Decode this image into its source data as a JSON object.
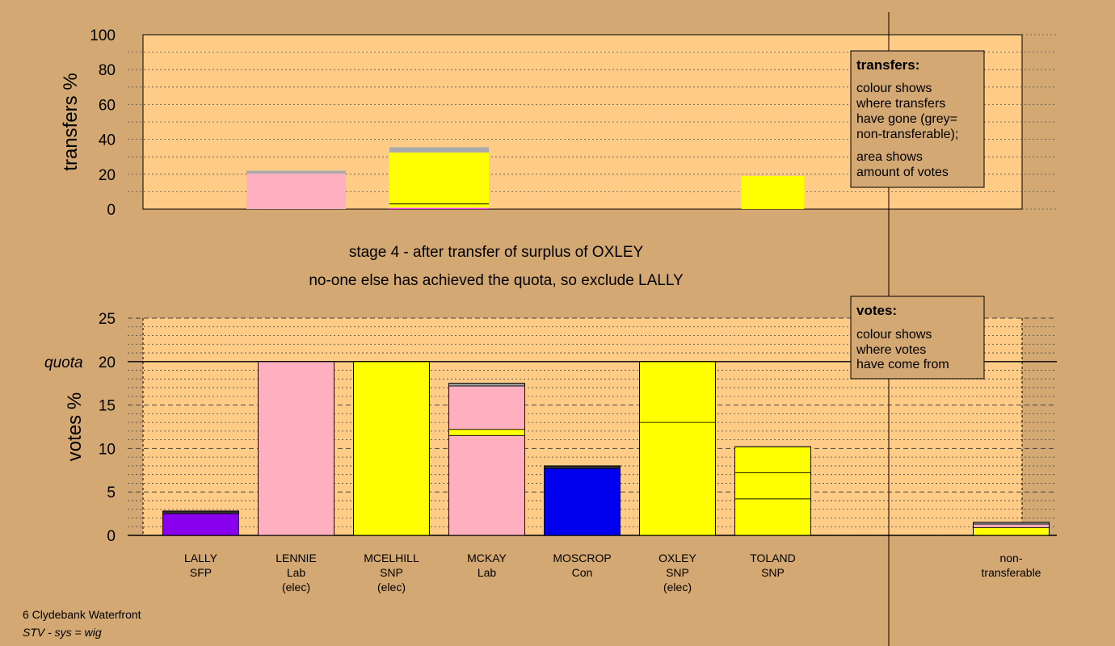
{
  "chart_data": [
    {
      "type": "bar",
      "ylabel": "transfers %",
      "ylim": [
        0,
        100
      ],
      "yticks": [
        "0",
        "20",
        "40",
        "60",
        "80",
        "100"
      ],
      "legend": {
        "title": "transfers:",
        "lines": [
          "colour shows",
          "where transfers",
          "have gone (grey=",
          "non-transferable);",
          "area shows",
          "amount of votes"
        ]
      },
      "bars": [
        {
          "candidate": "LALLY",
          "column": 1,
          "segments": [
            {
              "color": "#ffb0c0",
              "value": 20.4
            },
            {
              "color": "#aaaaaa",
              "value": 1.6
            }
          ]
        },
        {
          "candidate": "MCELHILL",
          "column": 2.5,
          "segments": [
            {
              "color": "#ff00ff",
              "value": 0.4
            },
            {
              "color": "#ffb0c0",
              "value": 0.6
            },
            {
              "color": "#ffff00",
              "value": 31.5
            },
            {
              "color": "#aaaaaa",
              "value": 3.0
            }
          ]
        },
        {
          "candidate": "OXLEY",
          "column": 6,
          "segments": [
            {
              "color": "#ffff00",
              "value": 19
            }
          ]
        }
      ]
    },
    {
      "type": "bar",
      "ylabel": "votes %",
      "ylim": [
        0,
        25
      ],
      "yticks": [
        "0",
        "5",
        "10",
        "15",
        "20",
        "25"
      ],
      "quota": 20,
      "quota_label": "quota",
      "legend": {
        "title": "votes:",
        "lines": [
          "colour shows",
          "where votes",
          "have come from"
        ]
      },
      "candidates": [
        {
          "name": "LALLY",
          "party": "SFP",
          "status": "",
          "segments": [
            {
              "color": "#8800ee",
              "value": 2.5
            },
            {
              "color": "#303030",
              "value": 0.3
            }
          ]
        },
        {
          "name": "LENNIE",
          "party": "Lab",
          "status": "(elec)",
          "segments": [
            {
              "color": "#ffb0c0",
              "value": 20
            }
          ]
        },
        {
          "name": "MCELHILL",
          "party": "SNP",
          "status": "(elec)",
          "segments": [
            {
              "color": "#ffff00",
              "value": 20
            }
          ]
        },
        {
          "name": "MCKAY",
          "party": "Lab",
          "status": "",
          "segments": [
            {
              "color": "#ffb0c0",
              "value": 11.5
            },
            {
              "color": "#ffff00",
              "value": 0.7
            },
            {
              "color": "#ffb0c0",
              "value": 5.0
            },
            {
              "color": "#aaaaaa",
              "value": 0.3
            }
          ]
        },
        {
          "name": "MOSCROP",
          "party": "Con",
          "status": "",
          "segments": [
            {
              "color": "#0000ee",
              "value": 7.7
            },
            {
              "color": "#303030",
              "value": 0.3
            }
          ]
        },
        {
          "name": "OXLEY",
          "party": "SNP",
          "status": "(elec)",
          "segments": [
            {
              "color": "#ffff00",
              "value": 13
            },
            {
              "color": "#ffff00",
              "value": 7
            }
          ]
        },
        {
          "name": "TOLAND",
          "party": "SNP",
          "status": "",
          "segments": [
            {
              "color": "#ffff00",
              "value": 4.2
            },
            {
              "color": "#ffff00",
              "value": 3.0
            },
            {
              "color": "#ffff00",
              "value": 3.0
            }
          ]
        },
        {
          "name": "non-",
          "party": "transferable",
          "status": "",
          "column": 8.5,
          "segments": [
            {
              "color": "#ffff00",
              "value": 0.9
            },
            {
              "color": "#ffb0c0",
              "value": 0.4
            },
            {
              "color": "#aaaaaa",
              "value": 0.2
            }
          ]
        }
      ]
    }
  ],
  "stage_line_1": "stage 4 - after transfer of surplus of OXLEY",
  "stage_line_2": "no-one else has achieved the quota, so exclude LALLY",
  "footer_ward": "6 Clydebank Waterfront",
  "footer_system": "STV - sys = wig"
}
